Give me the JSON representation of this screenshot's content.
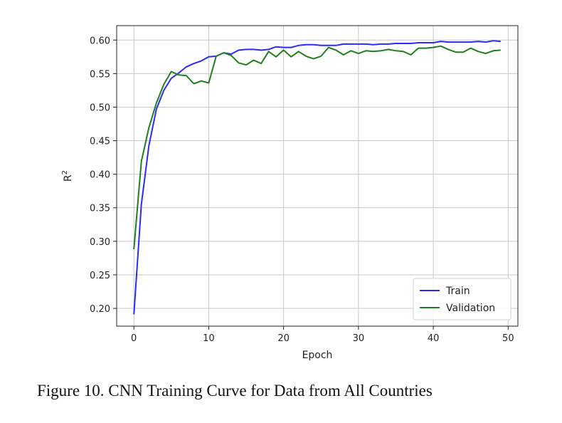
{
  "caption": "Figure 10. CNN Training Curve for Data from All Countries",
  "chart_data": {
    "type": "line",
    "xlabel": "Epoch",
    "ylabel": "R",
    "ylabel_superscript": "2",
    "xlim": [
      -2.3,
      51.3
    ],
    "ylim": [
      0.1735,
      0.6215
    ],
    "xticks": [
      0,
      10,
      20,
      30,
      40,
      50
    ],
    "yticks": [
      0.2,
      0.25,
      0.3,
      0.35,
      0.4,
      0.45,
      0.5,
      0.55,
      0.6
    ],
    "grid": true,
    "legend_position": "lower-right",
    "x": [
      0,
      1,
      2,
      3,
      4,
      5,
      6,
      7,
      8,
      9,
      10,
      11,
      12,
      13,
      14,
      15,
      16,
      17,
      18,
      19,
      20,
      21,
      22,
      23,
      24,
      25,
      26,
      27,
      28,
      29,
      30,
      31,
      32,
      33,
      34,
      35,
      36,
      37,
      38,
      39,
      40,
      41,
      42,
      43,
      44,
      45,
      46,
      47,
      48,
      49
    ],
    "series": [
      {
        "name": "Train",
        "color": "#2a2aff",
        "values": [
          0.191,
          0.355,
          0.442,
          0.497,
          0.525,
          0.543,
          0.551,
          0.56,
          0.565,
          0.569,
          0.575,
          0.576,
          0.581,
          0.579,
          0.585,
          0.586,
          0.586,
          0.585,
          0.586,
          0.59,
          0.589,
          0.589,
          0.592,
          0.593,
          0.593,
          0.592,
          0.592,
          0.592,
          0.594,
          0.594,
          0.594,
          0.594,
          0.593,
          0.594,
          0.594,
          0.595,
          0.595,
          0.595,
          0.596,
          0.596,
          0.596,
          0.598,
          0.597,
          0.597,
          0.597,
          0.597,
          0.598,
          0.597,
          0.599,
          0.598
        ]
      },
      {
        "name": "Validation",
        "color": "#1f7f1f",
        "values": [
          0.288,
          0.419,
          0.469,
          0.506,
          0.534,
          0.553,
          0.548,
          0.547,
          0.535,
          0.539,
          0.536,
          0.576,
          0.581,
          0.577,
          0.566,
          0.563,
          0.57,
          0.565,
          0.583,
          0.575,
          0.585,
          0.575,
          0.583,
          0.576,
          0.572,
          0.576,
          0.589,
          0.585,
          0.578,
          0.584,
          0.58,
          0.584,
          0.583,
          0.584,
          0.586,
          0.584,
          0.583,
          0.578,
          0.588,
          0.588,
          0.589,
          0.591,
          0.586,
          0.582,
          0.582,
          0.588,
          0.583,
          0.58,
          0.584,
          0.585
        ]
      }
    ]
  }
}
